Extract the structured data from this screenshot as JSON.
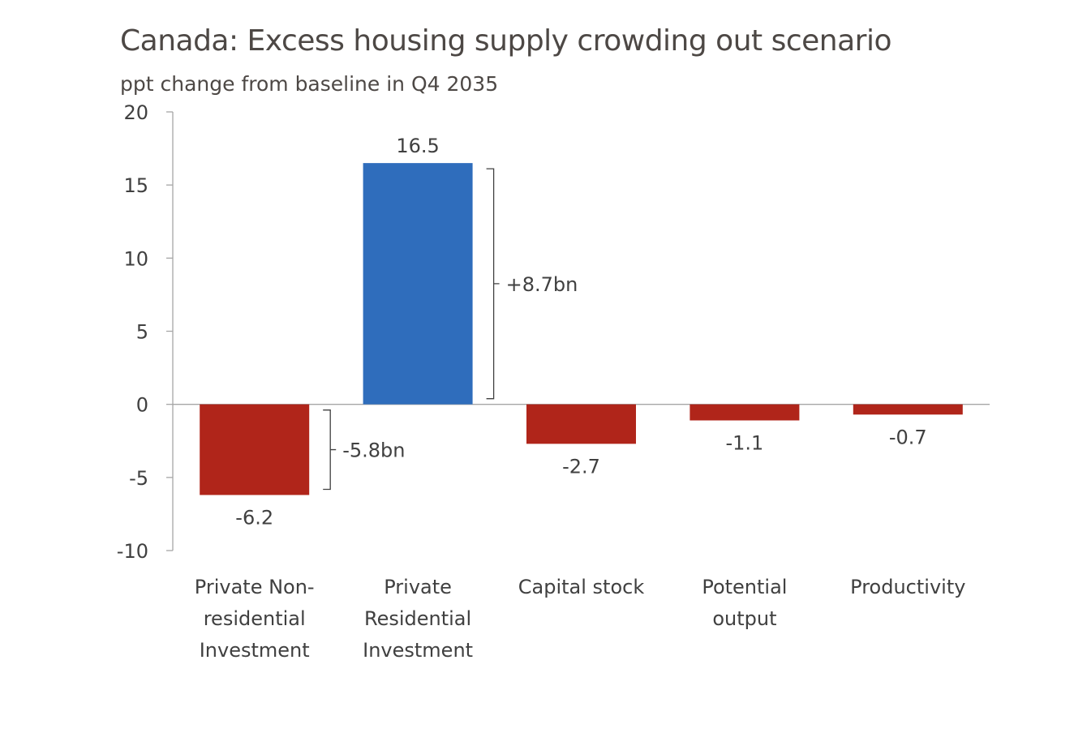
{
  "chart_data": {
    "type": "bar",
    "title": "Canada: Excess housing supply crowding out scenario",
    "subtitle": "ppt change from baseline in Q4 2035",
    "categories": [
      [
        "Private Non-",
        "residential",
        "Investment"
      ],
      [
        "Private",
        "Residential",
        "Investment"
      ],
      [
        "Capital stock"
      ],
      [
        "Potential",
        "output"
      ],
      [
        "Productivity"
      ]
    ],
    "values": [
      -6.2,
      16.5,
      -2.7,
      -1.1,
      -0.7
    ],
    "data_labels": [
      "-6.2",
      "16.5",
      "-2.7",
      "-1.1",
      "-0.7"
    ],
    "bar_colors": [
      "#b0251a",
      "#2f6dbc",
      "#b0251a",
      "#b0251a",
      "#b0251a"
    ],
    "ylim": [
      -10,
      20
    ],
    "yticks": [
      20,
      15,
      10,
      5,
      0,
      -5,
      -10
    ],
    "xlabel": "",
    "ylabel": "",
    "grid": false,
    "legend": "none",
    "annotations": [
      {
        "text": "+8.7bn",
        "category_index": 1,
        "from": 0,
        "to": 16.5
      },
      {
        "text": "-5.8bn",
        "category_index": 0,
        "from": 0,
        "to": -6.2
      }
    ]
  }
}
